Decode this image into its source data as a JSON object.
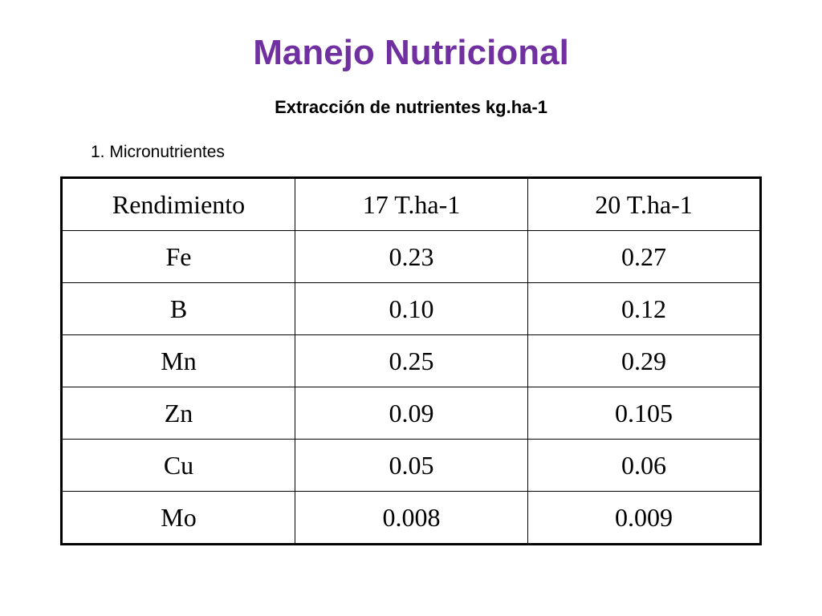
{
  "title": "Manejo Nutricional",
  "subtitle": "Extracción de nutrientes kg.ha-1",
  "section_label": "1. Micronutrientes",
  "table": {
    "header": [
      "Rendimiento",
      "17 T.ha-1",
      "20 T.ha-1"
    ],
    "rows": [
      [
        "Fe",
        "0.23",
        "0.27"
      ],
      [
        "B",
        "0.10",
        "0.12"
      ],
      [
        "Mn",
        "0.25",
        "0.29"
      ],
      [
        "Zn",
        "0.09",
        "0.105"
      ],
      [
        "Cu",
        "0.05",
        "0.06"
      ],
      [
        "Mo",
        "0.008",
        "0.009"
      ]
    ]
  },
  "colors": {
    "title": "#7030a0",
    "text": "#000000",
    "background": "#ffffff"
  }
}
